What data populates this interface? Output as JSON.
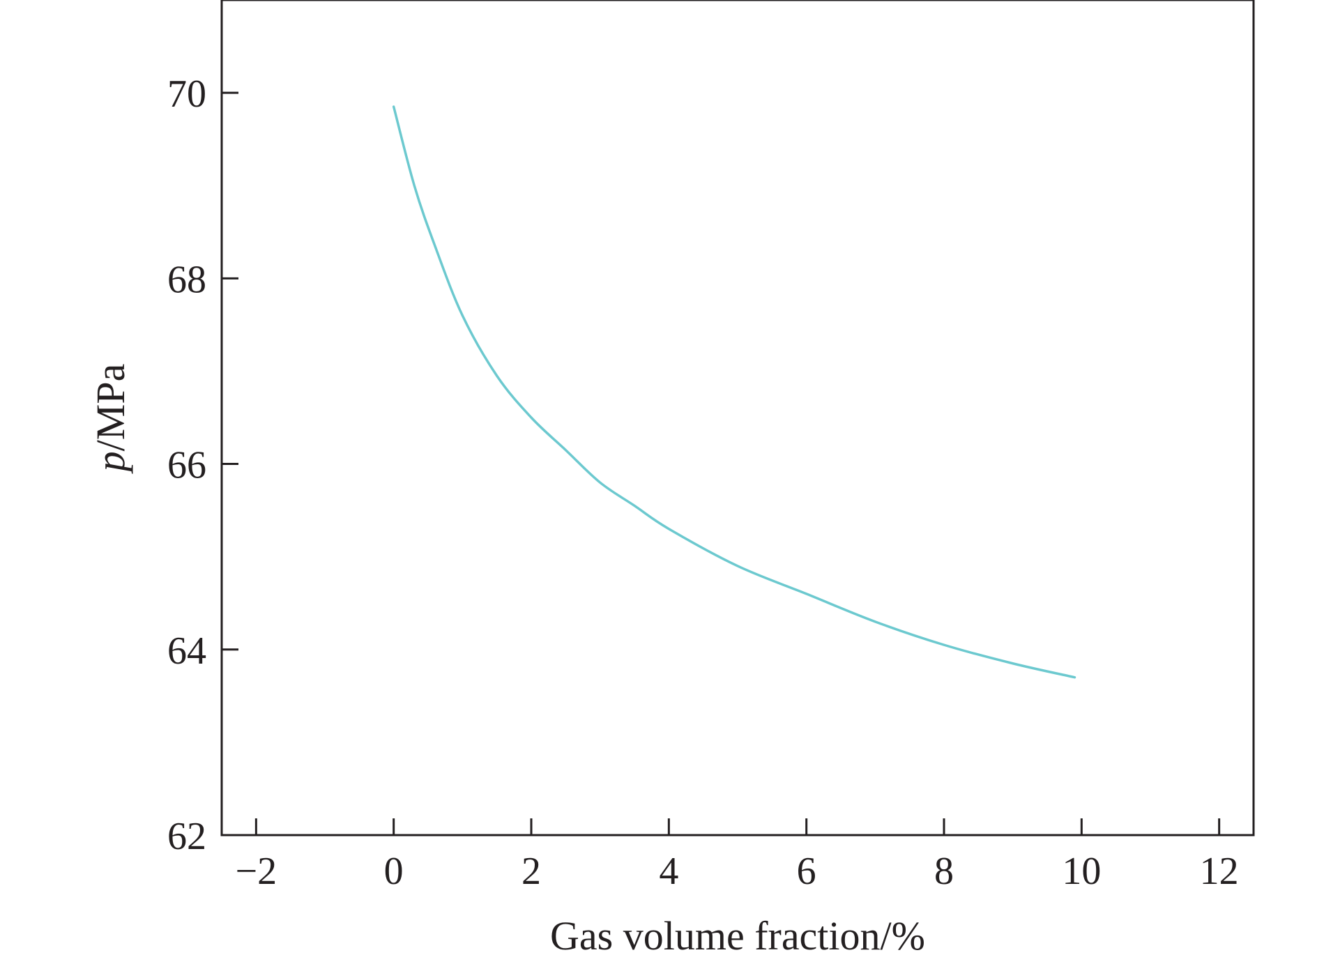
{
  "chart_data": {
    "type": "line",
    "title": "",
    "xlabel": "Gas volume fraction/%",
    "ylabel_italic": "p",
    "ylabel_rest": "/MPa",
    "xlim": [
      -2.5,
      12.5
    ],
    "ylim": [
      62,
      71
    ],
    "xticks": [
      -2,
      0,
      2,
      4,
      6,
      8,
      10,
      12
    ],
    "xtick_labels": [
      "−2",
      "0",
      "2",
      "4",
      "6",
      "8",
      "10",
      "12"
    ],
    "yticks": [
      62,
      64,
      66,
      68,
      70
    ],
    "ytick_labels": [
      "62",
      "64",
      "66",
      "68",
      "70"
    ],
    "grid": false,
    "line_color": "#6cc9cf",
    "axis_color": "#231f20",
    "series": [
      {
        "x": [
          0,
          0.3,
          0.6,
          1,
          1.5,
          2,
          2.5,
          3,
          3.5,
          4,
          5,
          6,
          7,
          8,
          9,
          9.9
        ],
        "y": [
          69.85,
          69.0,
          68.35,
          67.6,
          66.95,
          66.5,
          66.15,
          65.8,
          65.55,
          65.3,
          64.9,
          64.6,
          64.3,
          64.05,
          63.85,
          63.7
        ]
      }
    ]
  }
}
